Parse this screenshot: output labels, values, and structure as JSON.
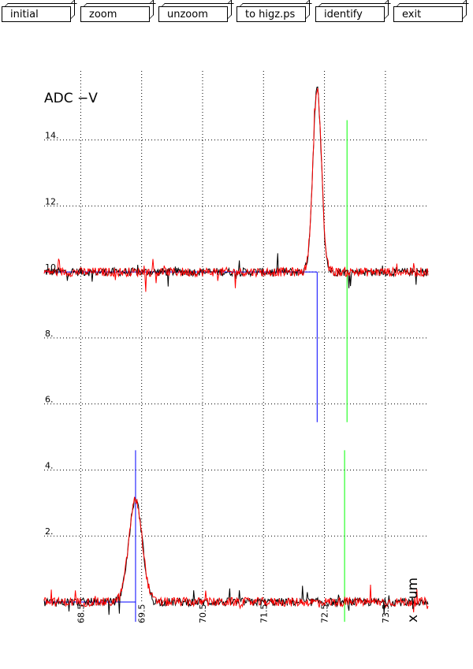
{
  "toolbar": {
    "buttons": [
      "initial",
      "zoom",
      "unzoom",
      "to higz.ps",
      "identify",
      "exit"
    ]
  },
  "chart_data": {
    "type": "line",
    "title": "",
    "ylabel": "ADC  −V",
    "xlabel": "x  −um",
    "xlim": [
      67.9,
      74.2
    ],
    "ylim": [
      0,
      15.9
    ],
    "xticks": [
      68.5,
      69.5,
      70.5,
      71.5,
      72.5,
      73.5
    ],
    "xtick_labels": [
      "68.5",
      "69.5",
      "70.5",
      "71.5",
      "72.5",
      "73.5"
    ],
    "yticks": [
      2,
      4,
      6,
      8,
      10,
      12,
      14
    ],
    "ytick_labels": [
      "2.",
      "4.",
      "6.",
      "8.",
      "10.",
      "12.",
      "14."
    ],
    "grid": true,
    "colors": {
      "data": "#000000",
      "fit": "#ff0000",
      "marker_blue": "#0000ff",
      "marker_green": "#00ff00"
    },
    "traces": [
      {
        "role": "data",
        "baseline": 10.0,
        "peak_x": 72.38,
        "peak_height": 5.55,
        "width": 0.07
      },
      {
        "role": "fit",
        "baseline": 10.0,
        "peak_x": 72.38,
        "peak_height": 5.55,
        "width": 0.07
      },
      {
        "role": "data",
        "baseline": 0.0,
        "peak_x": 69.4,
        "peak_height": 3.1,
        "width": 0.11
      },
      {
        "role": "fit",
        "baseline": 0.0,
        "peak_x": 69.4,
        "peak_height": 3.1,
        "width": 0.11
      }
    ],
    "hlines": [
      {
        "y": 10.0,
        "x_from": 67.9,
        "x_to": 72.38,
        "color": "blue"
      },
      {
        "y": 0.0,
        "x_from": 67.9,
        "x_to": 69.4,
        "color": "blue"
      }
    ],
    "vlines": [
      {
        "x": 72.38,
        "y_from": 5.45,
        "y_to": 10.0,
        "color": "blue"
      },
      {
        "x": 72.87,
        "y_from": 5.45,
        "y_to": 14.6,
        "color": "green"
      },
      {
        "x": 69.4,
        "y_from": -0.6,
        "y_to": 4.6,
        "color": "blue"
      },
      {
        "x": 72.83,
        "y_from": -0.6,
        "y_to": 4.6,
        "color": "green"
      }
    ]
  }
}
